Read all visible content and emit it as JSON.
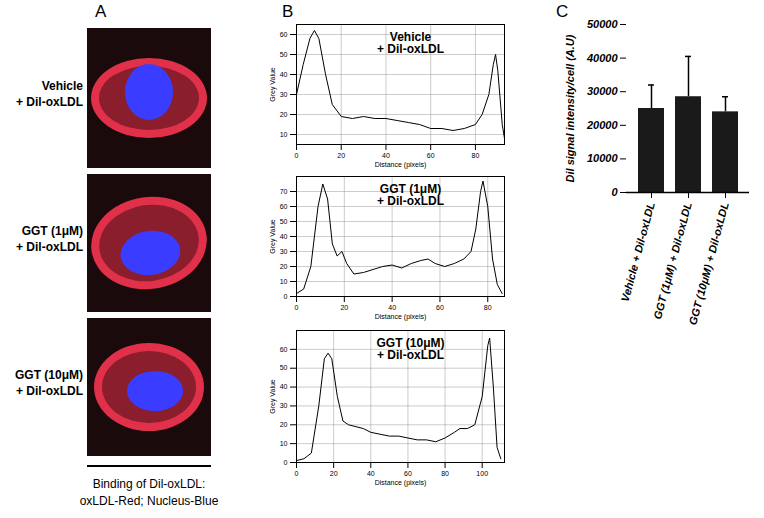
{
  "panel_labels": [
    "A",
    "B",
    "C"
  ],
  "images": {
    "rows": [
      {
        "label": [
          "Vehicle",
          "+ Dil-oxLDL"
        ]
      },
      {
        "label": [
          "GGT (1μM)",
          "+ Dil-oxLDL"
        ]
      },
      {
        "label": [
          "GGT (10μM)",
          "+ Dil-oxLDL"
        ]
      }
    ],
    "caption": [
      "Binding of Dil-oxLDL:",
      "oxLDL-Red; Nucleus-Blue"
    ]
  },
  "chart_data": [
    {
      "type": "line",
      "title": "Vehicle\n+ Dil-oxLDL",
      "x_label": "Distance (pixels)",
      "y_label": "Grey Value",
      "x": [
        0,
        3,
        6,
        8,
        10,
        13,
        16,
        20,
        25,
        30,
        35,
        40,
        45,
        50,
        55,
        60,
        65,
        70,
        75,
        80,
        83,
        86,
        88,
        89,
        90,
        92,
        93
      ],
      "values": [
        30,
        45,
        58,
        62,
        58,
        40,
        25,
        19,
        18,
        19,
        18,
        18,
        17,
        16,
        15,
        13,
        13,
        12,
        13,
        15,
        20,
        30,
        45,
        50,
        42,
        15,
        8
      ],
      "xlim": [
        0,
        93
      ],
      "ylim": [
        5,
        65
      ],
      "xticks": [
        0,
        20,
        40,
        60,
        80
      ],
      "yticks": [
        10,
        20,
        30,
        40,
        50,
        60
      ],
      "color": "#000000",
      "grid": true
    },
    {
      "type": "line",
      "title": "GGT (1μM)\n+ Dil-oxLDL",
      "x_label": "Distance (pixels)",
      "y_label": "Grey Value",
      "x": [
        0,
        3,
        6,
        9,
        11,
        13,
        15,
        17,
        19,
        21,
        24,
        28,
        32,
        36,
        40,
        44,
        48,
        52,
        55,
        58,
        62,
        66,
        70,
        73,
        75,
        77,
        78,
        80,
        82,
        84,
        86
      ],
      "values": [
        2,
        5,
        20,
        60,
        75,
        65,
        35,
        27,
        30,
        22,
        15,
        16,
        18,
        20,
        21,
        19,
        22,
        24,
        25,
        22,
        20,
        22,
        25,
        30,
        45,
        70,
        77,
        60,
        25,
        8,
        2
      ],
      "xlim": [
        0,
        87
      ],
      "ylim": [
        0,
        80
      ],
      "xticks": [
        0,
        20,
        40,
        60,
        80
      ],
      "yticks": [
        0,
        10,
        20,
        30,
        40,
        50,
        60,
        70
      ],
      "color": "#000000",
      "grid": true
    },
    {
      "type": "line",
      "title": "GGT (10μM)\n+ Dil-oxLDL",
      "x_label": "Distance (pixels)",
      "y_label": "Grey Value",
      "x": [
        0,
        4,
        8,
        12,
        15,
        17,
        19,
        22,
        25,
        28,
        32,
        36,
        40,
        45,
        50,
        55,
        60,
        65,
        70,
        75,
        80,
        85,
        88,
        92,
        96,
        100,
        103,
        104,
        106,
        108,
        110
      ],
      "values": [
        1,
        2,
        5,
        30,
        55,
        58,
        55,
        35,
        22,
        20,
        19,
        18,
        16,
        15,
        14,
        14,
        13,
        12,
        12,
        11,
        13,
        16,
        18,
        18,
        20,
        35,
        62,
        66,
        40,
        8,
        2
      ],
      "xlim": [
        0,
        112
      ],
      "ylim": [
        0,
        70
      ],
      "xticks": [
        0,
        20,
        40,
        60,
        80,
        100
      ],
      "yticks": [
        0,
        10,
        20,
        30,
        40,
        50,
        60
      ],
      "color": "#000000",
      "grid": true
    },
    {
      "type": "bar",
      "y_label": "Dil signal intensity/cell (A.U)",
      "categories": [
        "Vehicle + Dil-oxLDL",
        "GGT (1μM) + Dil-oxLDL",
        "GGT (10μM) + Dil-oxLDL"
      ],
      "values": [
        25000,
        28500,
        24000
      ],
      "errors": [
        7000,
        12000,
        4500
      ],
      "ylim": [
        0,
        50000
      ],
      "yticks": [
        0,
        10000,
        20000,
        30000,
        40000,
        50000
      ],
      "color": "#1a1a1a",
      "grid": false
    }
  ]
}
